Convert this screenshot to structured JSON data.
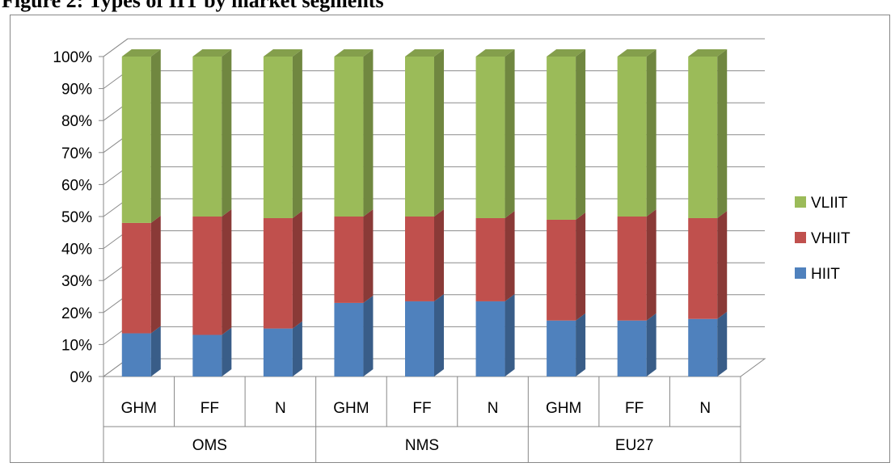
{
  "figure_title": "Figure 2: Types of IIT by market segments",
  "chart_data": {
    "type": "bar",
    "stacked": true,
    "percent_stacked": true,
    "three_d": true,
    "categories": [
      "GHM",
      "FF",
      "N",
      "GHM",
      "FF",
      "N",
      "GHM",
      "FF",
      "N"
    ],
    "groups": [
      {
        "label": "OMS",
        "categories": [
          "GHM",
          "FF",
          "N"
        ]
      },
      {
        "label": "NMS",
        "categories": [
          "GHM",
          "FF",
          "N"
        ]
      },
      {
        "label": "EU27",
        "categories": [
          "GHM",
          "FF",
          "N"
        ]
      }
    ],
    "series": [
      {
        "name": "HIIT",
        "color": "#4f81bd",
        "values": [
          13.5,
          13,
          15,
          23,
          23.5,
          23.5,
          17.5,
          17.5,
          18
        ]
      },
      {
        "name": "VHIIT",
        "color": "#c0504d",
        "values": [
          34.5,
          37,
          34.5,
          27,
          26.5,
          26,
          31.5,
          32.5,
          31.5
        ]
      },
      {
        "name": "VLIIT",
        "color": "#9bbb59",
        "values": [
          52,
          50,
          50.5,
          50,
          50,
          50.5,
          51,
          50,
          50.5
        ]
      }
    ],
    "ylim": [
      0,
      100
    ],
    "yticks": [
      "0%",
      "10%",
      "20%",
      "30%",
      "40%",
      "50%",
      "60%",
      "70%",
      "80%",
      "90%",
      "100%"
    ],
    "grid": true,
    "legend_position": "right",
    "legend_order": [
      "VLIIT",
      "VHIIT",
      "HIIT"
    ]
  }
}
